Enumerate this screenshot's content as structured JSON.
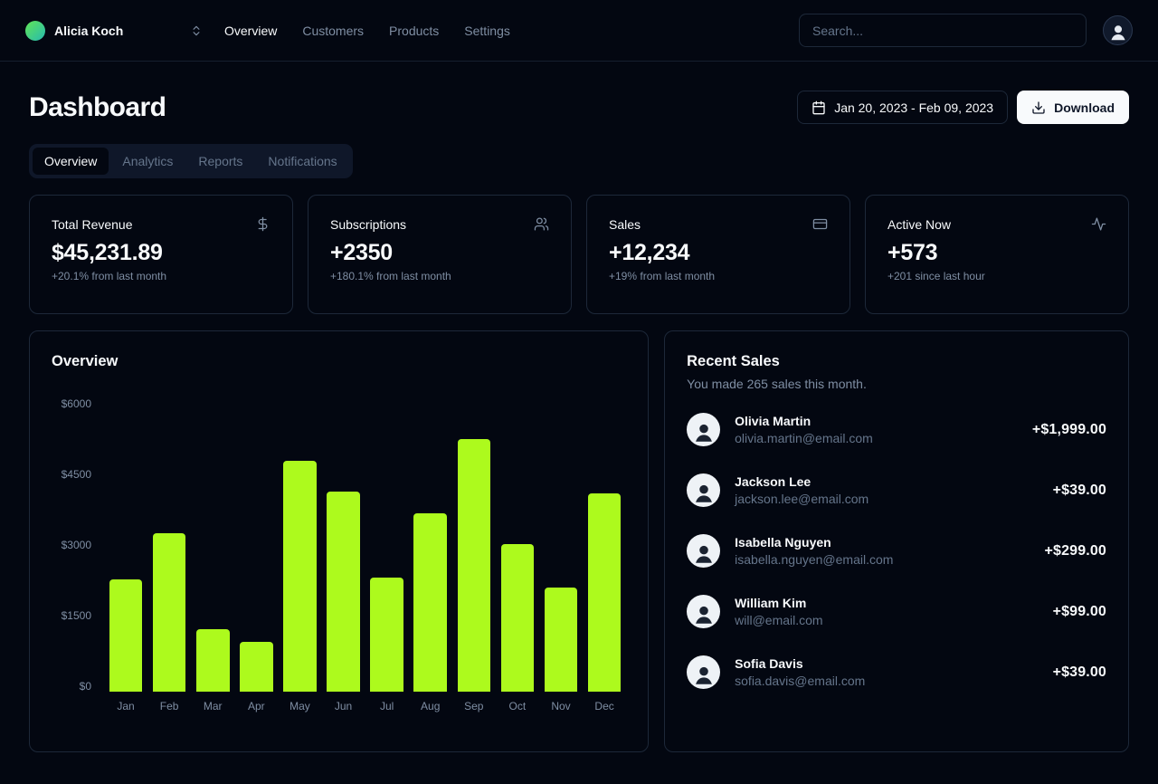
{
  "header": {
    "team_name": "Alicia Koch",
    "nav": [
      {
        "label": "Overview",
        "active": true
      },
      {
        "label": "Customers"
      },
      {
        "label": "Products"
      },
      {
        "label": "Settings"
      }
    ],
    "search_placeholder": "Search..."
  },
  "page": {
    "title": "Dashboard",
    "date_range": "Jan 20, 2023 - Feb 09, 2023",
    "download_label": "Download"
  },
  "tabs": [
    {
      "label": "Overview",
      "active": true
    },
    {
      "label": "Analytics"
    },
    {
      "label": "Reports"
    },
    {
      "label": "Notifications"
    }
  ],
  "stats": [
    {
      "title": "Total Revenue",
      "icon": "dollar-icon",
      "value": "$45,231.89",
      "change": "+20.1% from last month"
    },
    {
      "title": "Subscriptions",
      "icon": "users-icon",
      "value": "+2350",
      "change": "+180.1% from last month"
    },
    {
      "title": "Sales",
      "icon": "credit-card-icon",
      "value": "+12,234",
      "change": "+19% from last month"
    },
    {
      "title": "Active Now",
      "icon": "activity-icon",
      "value": "+573",
      "change": "+201 since last hour"
    }
  ],
  "chart_card": {
    "title": "Overview"
  },
  "chart_data": {
    "type": "bar",
    "title": "Overview",
    "categories": [
      "Jan",
      "Feb",
      "Mar",
      "Apr",
      "May",
      "Jun",
      "Jul",
      "Aug",
      "Sep",
      "Oct",
      "Nov",
      "Dec"
    ],
    "values": [
      2300,
      3250,
      1280,
      1020,
      4720,
      4090,
      2330,
      3650,
      5170,
      3020,
      2130,
      4060
    ],
    "xlabel": "",
    "ylabel": "",
    "ylim": [
      0,
      6000
    ],
    "yticks": [
      "$6000",
      "$4500",
      "$3000",
      "$1500",
      "$0"
    ],
    "bar_color": "#adfa1d",
    "grid": false,
    "legend": false
  },
  "recent_sales": {
    "title": "Recent Sales",
    "subtitle": "You made 265 sales this month.",
    "items": [
      {
        "name": "Olivia Martin",
        "email": "olivia.martin@email.com",
        "amount": "+$1,999.00"
      },
      {
        "name": "Jackson Lee",
        "email": "jackson.lee@email.com",
        "amount": "+$39.00"
      },
      {
        "name": "Isabella Nguyen",
        "email": "isabella.nguyen@email.com",
        "amount": "+$299.00"
      },
      {
        "name": "William Kim",
        "email": "will@email.com",
        "amount": "+$99.00"
      },
      {
        "name": "Sofia Davis",
        "email": "sofia.davis@email.com",
        "amount": "+$39.00"
      }
    ]
  },
  "colors": {
    "background": "#030711",
    "card_border": "#1d2839",
    "accent_bar": "#adfa1d",
    "muted_text": "#7f8ea3",
    "button_bg": "#f8fafc"
  }
}
